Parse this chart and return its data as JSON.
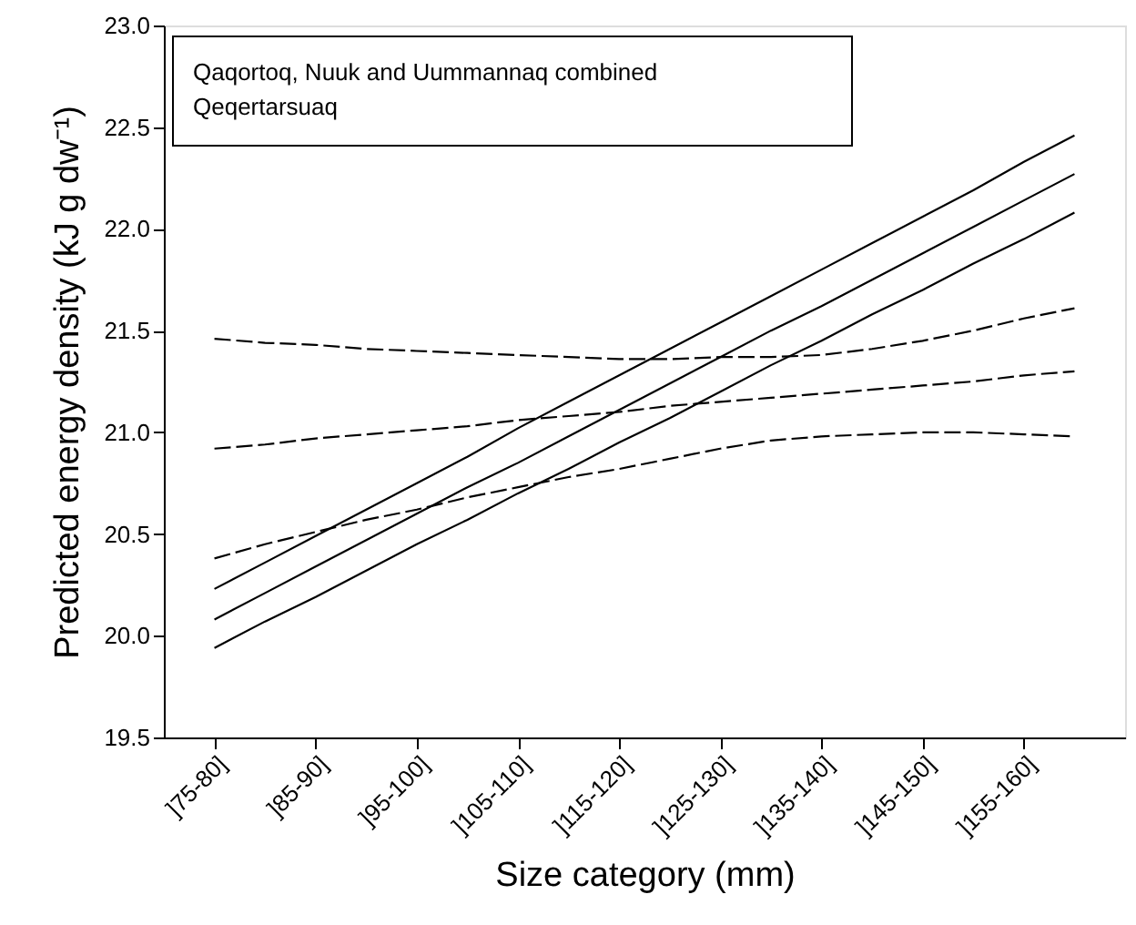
{
  "chart_data": {
    "type": "line",
    "xlabel": "Size category (mm)",
    "ylabel": "Predicted energy density (kJ g dw⁻¹)",
    "annotations": [
      "Qaqortoq, Nuuk and Uummannaq combined",
      "Qeqertarsuaq"
    ],
    "categories": [
      "]75-80]",
      null,
      "]85-90]",
      null,
      "]95-100]",
      null,
      "]105-110]",
      null,
      "]115-120]",
      null,
      "]125-130]",
      null,
      "]135-140]",
      null,
      "]145-150]",
      null,
      "]155-160]",
      null
    ],
    "ylim": [
      19.5,
      23.0
    ],
    "yticks": [
      {
        "value": 19.5,
        "label": "19.5"
      },
      {
        "value": 20.0,
        "label": "20.0"
      },
      {
        "value": 20.5,
        "label": "20.5"
      },
      {
        "value": 21.0,
        "label": "21.0"
      },
      {
        "value": 21.5,
        "label": "21.5"
      },
      {
        "value": 22.0,
        "label": "22.0"
      },
      {
        "value": 22.5,
        "label": "22.5"
      },
      {
        "value": 23.0,
        "label": "23.0"
      }
    ],
    "grid": false,
    "marker": "none",
    "series": [
      {
        "color": "#000000",
        "line_style": "solid",
        "values": [
          20.23,
          20.36,
          20.49,
          20.62,
          20.75,
          20.88,
          21.02,
          21.15,
          21.28,
          21.41,
          21.54,
          21.67,
          21.8,
          21.93,
          22.06,
          22.19,
          22.33,
          22.46
        ]
      },
      {
        "color": "#000000",
        "line_style": "solid",
        "values": [
          20.08,
          20.21,
          20.34,
          20.47,
          20.6,
          20.73,
          20.85,
          20.98,
          21.11,
          21.24,
          21.37,
          21.5,
          21.62,
          21.75,
          21.88,
          22.01,
          22.14,
          22.27
        ]
      },
      {
        "color": "#000000",
        "line_style": "solid",
        "values": [
          19.94,
          20.07,
          20.19,
          20.32,
          20.45,
          20.57,
          20.7,
          20.82,
          20.95,
          21.07,
          21.2,
          21.33,
          21.45,
          21.58,
          21.7,
          21.83,
          21.95,
          22.08
        ]
      },
      {
        "color": "#000000",
        "line_style": "dashed",
        "values": [
          21.46,
          21.44,
          21.43,
          21.41,
          21.4,
          21.39,
          21.38,
          21.37,
          21.36,
          21.36,
          21.37,
          21.37,
          21.38,
          21.41,
          21.45,
          21.5,
          21.56,
          21.61
        ]
      },
      {
        "color": "#000000",
        "line_style": "dashed",
        "values": [
          20.92,
          20.94,
          20.97,
          20.99,
          21.01,
          21.03,
          21.06,
          21.08,
          21.1,
          21.13,
          21.15,
          21.17,
          21.19,
          21.21,
          21.23,
          21.25,
          21.28,
          21.3
        ]
      },
      {
        "color": "#000000",
        "line_style": "dashed",
        "values": [
          20.38,
          20.45,
          20.51,
          20.57,
          20.62,
          20.68,
          20.73,
          20.78,
          20.82,
          20.87,
          20.92,
          20.96,
          20.98,
          20.99,
          21.0,
          21.0,
          20.99,
          20.98
        ]
      }
    ]
  }
}
